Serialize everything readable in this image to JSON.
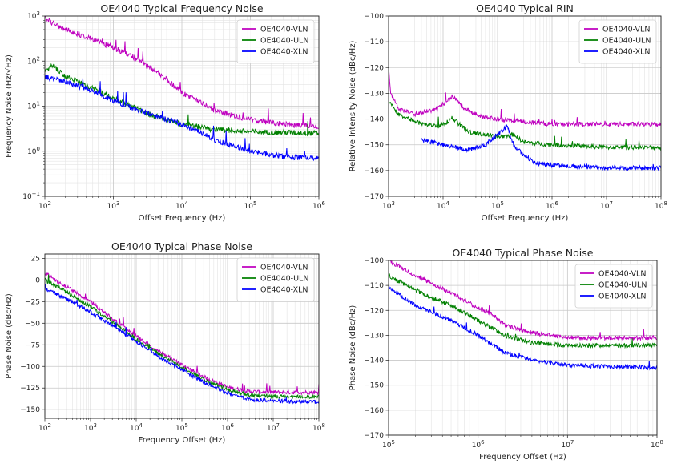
{
  "chart_data": [
    {
      "type": "line",
      "title": "OE4040 Typical Frequency Noise",
      "xlabel": "Offset Frequency (Hz)",
      "ylabel": "Frequency Noise (Hz/√Hz)",
      "xscale": "log",
      "yscale": "log",
      "xlim": [
        100,
        1000000
      ],
      "ylim": [
        0.1,
        1000
      ],
      "xticks": [
        {
          "v": 100,
          "b": "10",
          "e": "2"
        },
        {
          "v": 1000,
          "b": "10",
          "e": "3"
        },
        {
          "v": 10000,
          "b": "10",
          "e": "4"
        },
        {
          "v": 100000,
          "b": "10",
          "e": "5"
        },
        {
          "v": 1000000,
          "b": "10",
          "e": "6"
        }
      ],
      "yticks": [
        {
          "v": 0.1,
          "b": "10",
          "e": "−1"
        },
        {
          "v": 1,
          "b": "10",
          "e": "0"
        },
        {
          "v": 10,
          "b": "10",
          "e": "1"
        },
        {
          "v": 100,
          "b": "10",
          "e": "2"
        },
        {
          "v": 1000,
          "b": "10",
          "e": "3"
        }
      ],
      "grid": "major and minor",
      "legend_position": "top-right",
      "series": [
        {
          "name": "OE4040-VLN",
          "color": "#bf00bf",
          "x": [
            100,
            130,
            200,
            400,
            1000,
            2000,
            5000,
            10000,
            30000,
            100000,
            300000,
            1000000
          ],
          "y": [
            900,
            700,
            500,
            350,
            200,
            120,
            50,
            20,
            8,
            5,
            4,
            3.5
          ]
        },
        {
          "name": "OE4040-ULN",
          "color": "#008000",
          "x": [
            100,
            130,
            200,
            500,
            1000,
            3000,
            10000,
            30000,
            100000,
            1000000
          ],
          "y": [
            60,
            80,
            45,
            25,
            15,
            7,
            4,
            3,
            2.7,
            2.5
          ]
        },
        {
          "name": "OE4040-XLN",
          "color": "#0000ff",
          "x": [
            100,
            200,
            500,
            1000,
            3000,
            10000,
            30000,
            100000,
            300000,
            1000000
          ],
          "y": [
            45,
            35,
            22,
            13,
            7,
            4,
            1.8,
            1,
            0.75,
            0.7
          ]
        }
      ]
    },
    {
      "type": "line",
      "title": "OE4040 Typical RIN",
      "xlabel": "Offset Frequency (Hz)",
      "ylabel": "Relative Intensity Noise (dBc/Hz)",
      "xscale": "log",
      "yscale": "linear",
      "xlim": [
        1000,
        100000000
      ],
      "ylim": [
        -170,
        -100
      ],
      "xticks": [
        {
          "v": 1000,
          "b": "10",
          "e": "3"
        },
        {
          "v": 10000,
          "b": "10",
          "e": "4"
        },
        {
          "v": 100000,
          "b": "10",
          "e": "5"
        },
        {
          "v": 1000000,
          "b": "10",
          "e": "6"
        },
        {
          "v": 10000000,
          "b": "10",
          "e": "7"
        },
        {
          "v": 100000000,
          "b": "10",
          "e": "8"
        }
      ],
      "yticks": [
        {
          "v": -170,
          "t": "−170"
        },
        {
          "v": -160,
          "t": "−160"
        },
        {
          "v": -150,
          "t": "−150"
        },
        {
          "v": -140,
          "t": "−140"
        },
        {
          "v": -130,
          "t": "−130"
        },
        {
          "v": -120,
          "t": "−120"
        },
        {
          "v": -110,
          "t": "−110"
        },
        {
          "v": -100,
          "t": "−100"
        }
      ],
      "grid": "major and minor",
      "legend_position": "top-right",
      "series": [
        {
          "name": "OE4040-VLN",
          "color": "#bf00bf",
          "x": [
            1000,
            1100,
            1500,
            3000,
            8000,
            15000,
            25000,
            50000,
            100000,
            300000,
            1000000,
            10000000,
            100000000
          ],
          "y": [
            -120,
            -130,
            -136,
            -138,
            -136,
            -131,
            -136,
            -139,
            -140,
            -141,
            -142,
            -142,
            -142
          ]
        },
        {
          "name": "OE4040-ULN",
          "color": "#008000",
          "x": [
            1000,
            1500,
            3000,
            8000,
            15000,
            30000,
            100000,
            200000,
            300000,
            1000000,
            10000000,
            100000000
          ],
          "y": [
            -133,
            -138,
            -141,
            -143,
            -140,
            -145,
            -147,
            -146,
            -149,
            -150,
            -151,
            -151
          ]
        },
        {
          "name": "OE4040-XLN",
          "color": "#0000ff",
          "x": [
            4000,
            10000,
            30000,
            60000,
            100000,
            150000,
            200000,
            300000,
            500000,
            1000000,
            10000000,
            100000000
          ],
          "y": [
            -148,
            -150,
            -152,
            -150,
            -146,
            -143,
            -150,
            -154,
            -157,
            -158,
            -159,
            -159
          ]
        }
      ]
    },
    {
      "type": "line",
      "title": "OE4040 Typical Phase Noise",
      "xlabel": "Frequency Offset (Hz)",
      "ylabel": "Phase Noise (dBc/Hz)",
      "xscale": "log",
      "yscale": "linear",
      "xlim": [
        100,
        100000000
      ],
      "ylim": [
        -160,
        30
      ],
      "xticks": [
        {
          "v": 100,
          "b": "10",
          "e": "2"
        },
        {
          "v": 1000,
          "b": "10",
          "e": "3"
        },
        {
          "v": 10000,
          "b": "10",
          "e": "4"
        },
        {
          "v": 100000,
          "b": "10",
          "e": "5"
        },
        {
          "v": 1000000,
          "b": "10",
          "e": "6"
        },
        {
          "v": 10000000,
          "b": "10",
          "e": "7"
        },
        {
          "v": 100000000,
          "b": "10",
          "e": "8"
        }
      ],
      "yticks": [
        {
          "v": -150,
          "t": "−150"
        },
        {
          "v": -125,
          "t": "−125"
        },
        {
          "v": -100,
          "t": "−100"
        },
        {
          "v": -75,
          "t": "−75"
        },
        {
          "v": -50,
          "t": "−50"
        },
        {
          "v": -25,
          "t": "−25"
        },
        {
          "v": 0,
          "t": "0"
        },
        {
          "v": 25,
          "t": "25"
        }
      ],
      "grid": "major and minor",
      "legend_position": "top-right",
      "series": [
        {
          "name": "OE4040-VLN",
          "color": "#bf00bf",
          "x": [
            100,
            300,
            1000,
            3000,
            10000,
            30000,
            100000,
            300000,
            1000000,
            3000000,
            10000000,
            100000000
          ],
          "y": [
            8,
            -8,
            -25,
            -45,
            -65,
            -82,
            -98,
            -112,
            -124,
            -129,
            -130,
            -130
          ]
        },
        {
          "name": "OE4040-ULN",
          "color": "#008000",
          "x": [
            100,
            300,
            1000,
            3000,
            10000,
            30000,
            100000,
            300000,
            1000000,
            3000000,
            10000000,
            100000000
          ],
          "y": [
            0,
            -14,
            -31,
            -49,
            -68,
            -85,
            -101,
            -115,
            -127,
            -133,
            -135,
            -135
          ]
        },
        {
          "name": "OE4040-XLN",
          "color": "#0000ff",
          "x": [
            100,
            300,
            1000,
            3000,
            10000,
            30000,
            100000,
            300000,
            1000000,
            3000000,
            10000000,
            100000000
          ],
          "y": [
            -10,
            -22,
            -37,
            -53,
            -71,
            -88,
            -104,
            -118,
            -131,
            -138,
            -140,
            -141
          ]
        }
      ]
    },
    {
      "type": "line",
      "title": "OE4040 Typical Phase Noise",
      "xlabel": "Frequency Offset (Hz)",
      "ylabel": "Phase Noise (dBc/Hz)",
      "xscale": "log",
      "yscale": "linear",
      "xlim": [
        100000,
        100000000
      ],
      "ylim": [
        -170,
        -100
      ],
      "xticks": [
        {
          "v": 100000,
          "b": "10",
          "e": "5"
        },
        {
          "v": 1000000,
          "b": "10",
          "e": "6"
        },
        {
          "v": 10000000,
          "b": "10",
          "e": "7"
        },
        {
          "v": 100000000,
          "b": "10",
          "e": "8"
        }
      ],
      "yticks": [
        {
          "v": -170,
          "t": "−170"
        },
        {
          "v": -160,
          "t": "−160"
        },
        {
          "v": -150,
          "t": "−150"
        },
        {
          "v": -140,
          "t": "−140"
        },
        {
          "v": -130,
          "t": "−130"
        },
        {
          "v": -120,
          "t": "−120"
        },
        {
          "v": -110,
          "t": "−110"
        },
        {
          "v": -100,
          "t": "−100"
        }
      ],
      "grid": "major and minor",
      "legend_position": "top-right",
      "series": [
        {
          "name": "OE4040-VLN",
          "color": "#bf00bf",
          "x": [
            100000,
            200000,
            500000,
            1000000,
            1500000,
            2000000,
            4000000,
            10000000,
            100000000
          ],
          "y": [
            -100,
            -106,
            -113,
            -119,
            -122,
            -126,
            -129,
            -131,
            -131
          ]
        },
        {
          "name": "OE4040-ULN",
          "color": "#008000",
          "x": [
            100000,
            200000,
            500000,
            1000000,
            2000000,
            4000000,
            10000000,
            100000000
          ],
          "y": [
            -106,
            -112,
            -118,
            -124,
            -130,
            -133,
            -134,
            -134
          ]
        },
        {
          "name": "OE4040-XLN",
          "color": "#0000ff",
          "x": [
            100000,
            200000,
            500000,
            1000000,
            2000000,
            4000000,
            10000000,
            100000000
          ],
          "y": [
            -111,
            -118,
            -124,
            -130,
            -137,
            -140,
            -142,
            -143
          ]
        }
      ]
    }
  ]
}
